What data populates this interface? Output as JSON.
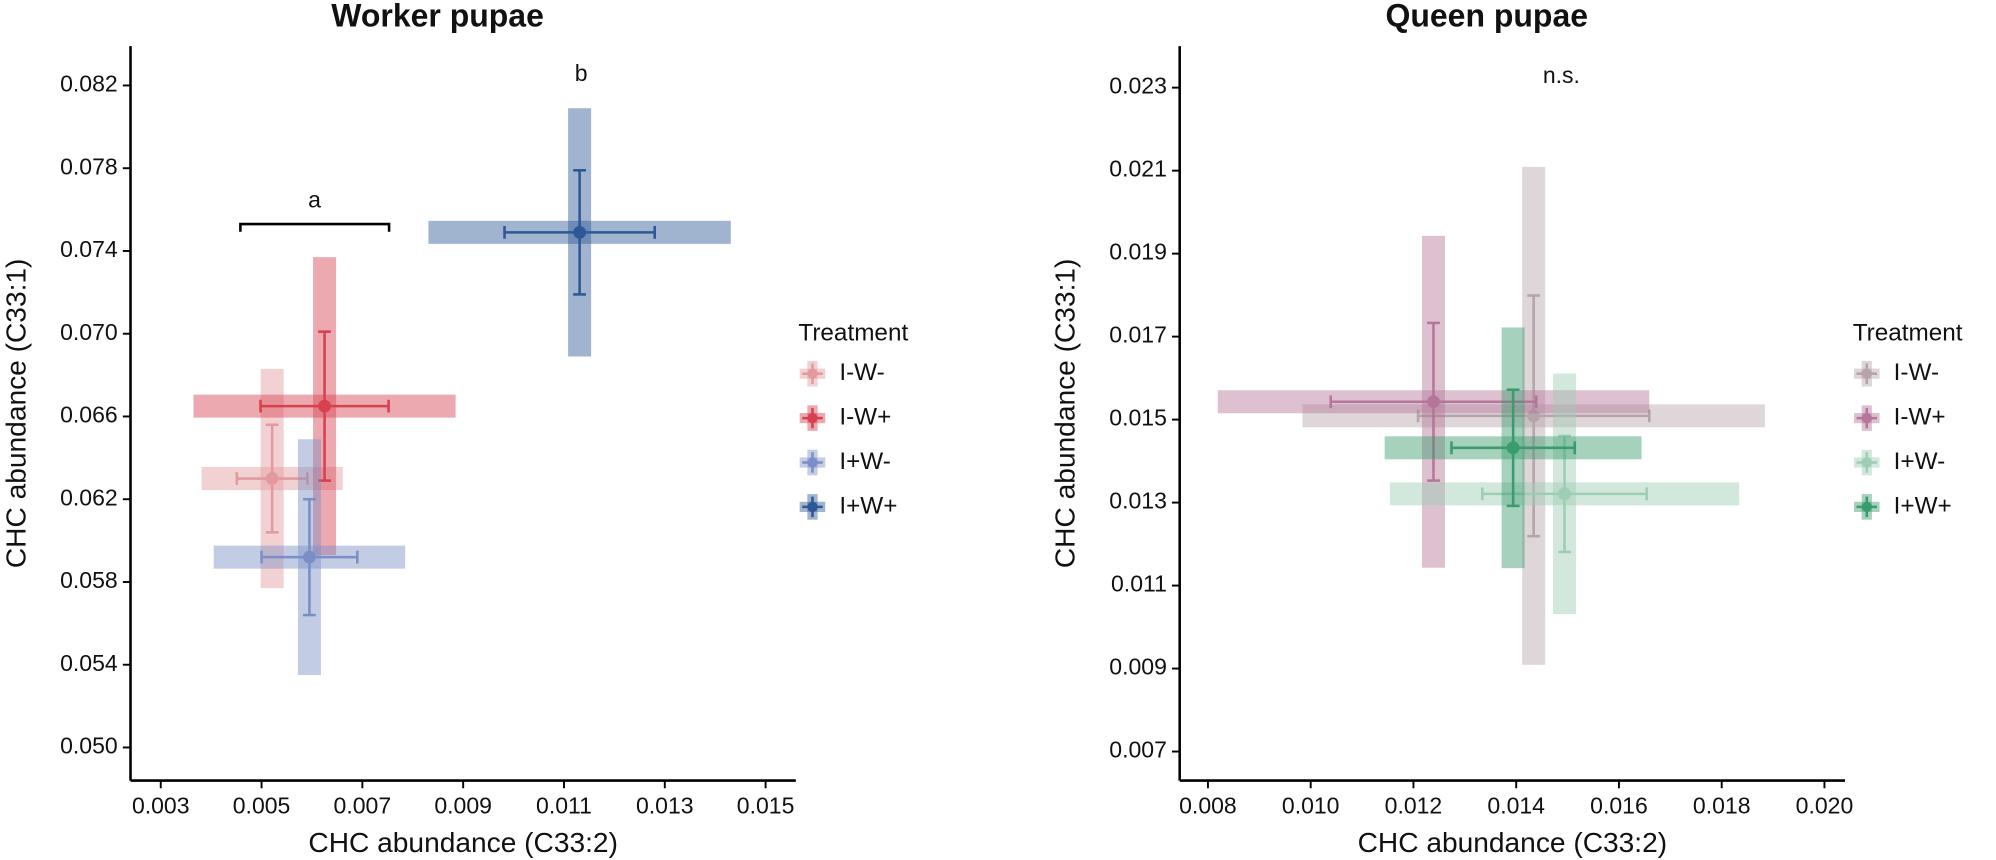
{
  "chart_data": [
    {
      "type": "scatter",
      "title": "Worker pupae",
      "xlabel": "CHC abundance (C33:2)",
      "ylabel": "CHC abundance (C33:1)",
      "legend_title": "Treatment",
      "xlim": [
        0.0024,
        0.0156
      ],
      "xticks": [
        0.003,
        0.005,
        0.007,
        0.009,
        0.011,
        0.013,
        0.015
      ],
      "ylim": [
        0.0484,
        0.0839
      ],
      "yticks": [
        {
          "value": 0.05,
          "label": "0.050"
        },
        0.054,
        0.058,
        0.062,
        0.066,
        {
          "value": 0.07,
          "label": "0.070"
        },
        0.074,
        0.078,
        0.082
      ],
      "annotations": [
        {
          "text": "a",
          "x": [
            0.00458,
            0.00753
          ],
          "y": 0.0753,
          "text_x": 0.00605,
          "text_y": 0.0764
        },
        {
          "text": "b",
          "text_x": 0.01134,
          "text_y": 0.0825
        }
      ],
      "series": [
        {
          "name": "I-W-",
          "color": "#e29a9e",
          "x": [
            0.00521
          ],
          "values": [
            0.063
          ],
          "x_err": [
            0.0007
          ],
          "y_err": [
            0.0026
          ],
          "x_band": [
            0.0014
          ],
          "y_band": [
            0.0053
          ]
        },
        {
          "name": "I-W+",
          "color": "#d7404f",
          "x": [
            0.00625
          ],
          "values": [
            0.0665
          ],
          "x_err": [
            0.00127
          ],
          "y_err": [
            0.0036
          ],
          "x_band": [
            0.0026
          ],
          "y_band": [
            0.0072
          ]
        },
        {
          "name": "I+W-",
          "color": "#7b8fc6",
          "x": [
            0.00595
          ],
          "values": [
            0.0592
          ],
          "x_err": [
            0.00095
          ],
          "y_err": [
            0.0028
          ],
          "x_band": [
            0.0019
          ],
          "y_band": [
            0.0057
          ]
        },
        {
          "name": "I+W+",
          "color": "#2d5896",
          "x": [
            0.01131
          ],
          "values": [
            0.0749
          ],
          "x_err": [
            0.00149
          ],
          "y_err": [
            0.003
          ],
          "x_band": [
            0.003
          ],
          "y_band": [
            0.006
          ]
        }
      ]
    },
    {
      "type": "scatter",
      "title": "Queen pupae",
      "xlabel": "CHC abundance (C33:2)",
      "ylabel": "CHC abundance (C33:1)",
      "legend_title": "Treatment",
      "xlim": [
        0.00745,
        0.0204
      ],
      "xticks": [
        0.008,
        {
          "value": 0.01,
          "label": "0.010"
        },
        0.012,
        0.014,
        0.016,
        0.018,
        {
          "value": 0.02,
          "label": "0.020"
        }
      ],
      "ylim": [
        0.0063,
        0.024
      ],
      "yticks": [
        0.007,
        0.009,
        0.011,
        0.013,
        0.015,
        0.017,
        0.019,
        0.021,
        0.023
      ],
      "annotations": [
        {
          "text": "n.s.",
          "text_x": 0.01488,
          "text_y": 0.02326
        }
      ],
      "series": [
        {
          "name": "I-W-",
          "color": "#b5a4ab",
          "x": [
            0.01434
          ],
          "values": [
            0.01509
          ],
          "x_err": [
            0.00225
          ],
          "y_err": [
            0.0029
          ],
          "x_band": [
            0.0045
          ],
          "y_band": [
            0.006
          ]
        },
        {
          "name": "I-W+",
          "color": "#b4769a",
          "x": [
            0.01239
          ],
          "values": [
            0.01543
          ],
          "x_err": [
            0.002
          ],
          "y_err": [
            0.0019
          ],
          "x_band": [
            0.0042
          ],
          "y_band": [
            0.004
          ]
        },
        {
          "name": "I+W-",
          "color": "#9dcdb3",
          "x": [
            0.01494
          ],
          "values": [
            0.01321
          ],
          "x_err": [
            0.0016
          ],
          "y_err": [
            0.0014
          ],
          "x_band": [
            0.0034
          ],
          "y_band": [
            0.0029
          ]
        },
        {
          "name": "I+W+",
          "color": "#3a9b6c",
          "x": [
            0.01394
          ],
          "values": [
            0.01432
          ],
          "x_err": [
            0.0012
          ],
          "y_err": [
            0.0014
          ],
          "x_band": [
            0.0025
          ],
          "y_band": [
            0.0029
          ]
        }
      ]
    }
  ]
}
